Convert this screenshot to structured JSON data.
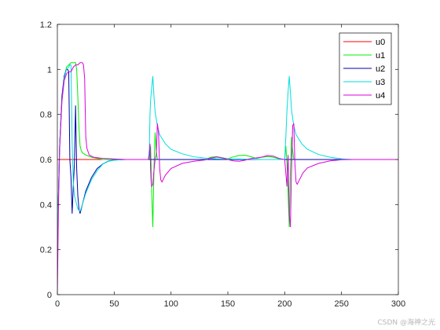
{
  "chart_data": {
    "type": "line",
    "title": "",
    "xlabel": "",
    "ylabel": "",
    "xlim": [
      0,
      300
    ],
    "ylim": [
      0,
      1.2
    ],
    "xticks": [
      0,
      50,
      100,
      150,
      200,
      250,
      300
    ],
    "yticks": [
      0,
      0.2,
      0.4,
      0.6,
      0.8,
      1,
      1.2
    ],
    "xtick_labels": [
      "0",
      "50",
      "100",
      "150",
      "200",
      "250",
      "300"
    ],
    "ytick_labels": [
      "0",
      "0.2",
      "0.4",
      "0.6",
      "0.8",
      "1",
      "1.2"
    ],
    "grid": false,
    "legend_placement": "top-right",
    "series": [
      {
        "name": "u0",
        "color": "#ff0000",
        "points": [
          [
            0,
            0.6
          ],
          [
            300,
            0.6
          ]
        ]
      },
      {
        "name": "u1",
        "color": "#00ee00",
        "points": [
          [
            0,
            0.2
          ],
          [
            1,
            0.45
          ],
          [
            2,
            0.66
          ],
          [
            4,
            0.86
          ],
          [
            6,
            0.96
          ],
          [
            8,
            1.01
          ],
          [
            10,
            1.02
          ],
          [
            12,
            1.03
          ],
          [
            14,
            1.03
          ],
          [
            16,
            1.03
          ],
          [
            17,
            1.0
          ],
          [
            18,
            0.88
          ],
          [
            19,
            0.74
          ],
          [
            20,
            0.66
          ],
          [
            21,
            0.64
          ],
          [
            22,
            0.63
          ],
          [
            25,
            0.62
          ],
          [
            30,
            0.61
          ],
          [
            40,
            0.6
          ],
          [
            50,
            0.6
          ],
          [
            80,
            0.6
          ],
          [
            81,
            0.6
          ],
          [
            82,
            0.66
          ],
          [
            82.5,
            0.58
          ],
          [
            83,
            0.45
          ],
          [
            84,
            0.3
          ],
          [
            85,
            0.56
          ],
          [
            86,
            0.72
          ],
          [
            87,
            0.64
          ],
          [
            88,
            0.6
          ],
          [
            90,
            0.6
          ],
          [
            100,
            0.6
          ],
          [
            120,
            0.6
          ],
          [
            130,
            0.6
          ],
          [
            135,
            0.61
          ],
          [
            140,
            0.613
          ],
          [
            145,
            0.608
          ],
          [
            150,
            0.603
          ],
          [
            155,
            0.612
          ],
          [
            160,
            0.618
          ],
          [
            165,
            0.619
          ],
          [
            170,
            0.613
          ],
          [
            175,
            0.605
          ],
          [
            180,
            0.61
          ],
          [
            185,
            0.613
          ],
          [
            190,
            0.61
          ],
          [
            195,
            0.603
          ],
          [
            198,
            0.6
          ],
          [
            200,
            0.6
          ],
          [
            201,
            0.66
          ],
          [
            202,
            0.58
          ],
          [
            203,
            0.45
          ],
          [
            204,
            0.3
          ],
          [
            205,
            0.55
          ],
          [
            206,
            0.7
          ],
          [
            207,
            0.64
          ],
          [
            208,
            0.6
          ],
          [
            210,
            0.6
          ],
          [
            230,
            0.6
          ],
          [
            300,
            0.6
          ]
        ]
      },
      {
        "name": "u2",
        "color": "#0000aa",
        "points": [
          [
            0,
            0.2
          ],
          [
            1,
            0.45
          ],
          [
            2,
            0.66
          ],
          [
            4,
            0.88
          ],
          [
            6,
            0.97
          ],
          [
            8,
            1.0
          ],
          [
            9,
            1.0
          ],
          [
            10,
            0.99
          ],
          [
            11,
            0.6
          ],
          [
            12,
            0.52
          ],
          [
            13,
            0.36
          ],
          [
            14,
            0.48
          ],
          [
            15,
            0.58
          ],
          [
            16,
            0.84
          ],
          [
            17,
            0.56
          ],
          [
            18,
            0.44
          ],
          [
            19,
            0.38
          ],
          [
            20,
            0.36
          ],
          [
            22,
            0.4
          ],
          [
            25,
            0.46
          ],
          [
            30,
            0.52
          ],
          [
            35,
            0.56
          ],
          [
            40,
            0.58
          ],
          [
            45,
            0.593
          ],
          [
            50,
            0.598
          ],
          [
            60,
            0.6
          ],
          [
            300,
            0.6
          ]
        ]
      },
      {
        "name": "u3",
        "color": "#00dddd",
        "points": [
          [
            0,
            0.2
          ],
          [
            1,
            0.45
          ],
          [
            2,
            0.66
          ],
          [
            4,
            0.86
          ],
          [
            6,
            0.96
          ],
          [
            8,
            1.0
          ],
          [
            10,
            1.01
          ],
          [
            11,
            1.02
          ],
          [
            12,
            1.02
          ],
          [
            13,
            0.68
          ],
          [
            14,
            0.5
          ],
          [
            15,
            0.44
          ],
          [
            16,
            0.42
          ],
          [
            17,
            0.4
          ],
          [
            18,
            0.38
          ],
          [
            20,
            0.37
          ],
          [
            22,
            0.4
          ],
          [
            25,
            0.45
          ],
          [
            30,
            0.51
          ],
          [
            35,
            0.55
          ],
          [
            40,
            0.58
          ],
          [
            45,
            0.592
          ],
          [
            50,
            0.597
          ],
          [
            60,
            0.6
          ],
          [
            80,
            0.6
          ],
          [
            81,
            0.65
          ],
          [
            81.5,
            0.8
          ],
          [
            82,
            0.86
          ],
          [
            83,
            0.92
          ],
          [
            84,
            0.97
          ],
          [
            85,
            0.88
          ],
          [
            86,
            0.81
          ],
          [
            88,
            0.75
          ],
          [
            90,
            0.71
          ],
          [
            95,
            0.67
          ],
          [
            100,
            0.645
          ],
          [
            110,
            0.625
          ],
          [
            120,
            0.612
          ],
          [
            130,
            0.606
          ],
          [
            140,
            0.603
          ],
          [
            150,
            0.602
          ],
          [
            160,
            0.602
          ],
          [
            180,
            0.6
          ],
          [
            200,
            0.6
          ],
          [
            201,
            0.7
          ],
          [
            202,
            0.82
          ],
          [
            203,
            0.9
          ],
          [
            204,
            0.97
          ],
          [
            205,
            0.9
          ],
          [
            206,
            0.82
          ],
          [
            208,
            0.75
          ],
          [
            210,
            0.71
          ],
          [
            215,
            0.67
          ],
          [
            220,
            0.645
          ],
          [
            230,
            0.622
          ],
          [
            240,
            0.61
          ],
          [
            250,
            0.603
          ],
          [
            260,
            0.6
          ],
          [
            300,
            0.6
          ]
        ]
      },
      {
        "name": "u4",
        "color": "#dd00dd",
        "points": [
          [
            0,
            0.0
          ],
          [
            0.5,
            0.2
          ],
          [
            1,
            0.4
          ],
          [
            2,
            0.64
          ],
          [
            4,
            0.86
          ],
          [
            6,
            0.95
          ],
          [
            8,
            0.98
          ],
          [
            10,
            0.99
          ],
          [
            12,
            0.99
          ],
          [
            14,
            1.01
          ],
          [
            16,
            1.02
          ],
          [
            18,
            1.02
          ],
          [
            20,
            1.03
          ],
          [
            22,
            1.03
          ],
          [
            23,
            1.02
          ],
          [
            24,
            0.96
          ],
          [
            25,
            0.7
          ],
          [
            26,
            0.65
          ],
          [
            28,
            0.62
          ],
          [
            32,
            0.61
          ],
          [
            40,
            0.605
          ],
          [
            60,
            0.6
          ],
          [
            80,
            0.6
          ],
          [
            81,
            0.62
          ],
          [
            81.5,
            0.67
          ],
          [
            82,
            0.56
          ],
          [
            82.5,
            0.5
          ],
          [
            83,
            0.48
          ],
          [
            84,
            0.49
          ],
          [
            85,
            0.55
          ],
          [
            86,
            0.6
          ],
          [
            87,
            0.62
          ],
          [
            88,
            0.76
          ],
          [
            89,
            0.72
          ],
          [
            90,
            0.56
          ],
          [
            91,
            0.51
          ],
          [
            92,
            0.5
          ],
          [
            95,
            0.53
          ],
          [
            100,
            0.56
          ],
          [
            110,
            0.583
          ],
          [
            120,
            0.592
          ],
          [
            130,
            0.598
          ],
          [
            135,
            0.606
          ],
          [
            140,
            0.611
          ],
          [
            145,
            0.607
          ],
          [
            150,
            0.6
          ],
          [
            155,
            0.594
          ],
          [
            160,
            0.592
          ],
          [
            165,
            0.597
          ],
          [
            170,
            0.604
          ],
          [
            175,
            0.607
          ],
          [
            180,
            0.611
          ],
          [
            185,
            0.618
          ],
          [
            190,
            0.615
          ],
          [
            195,
            0.605
          ],
          [
            200,
            0.6
          ],
          [
            201,
            0.54
          ],
          [
            202,
            0.48
          ],
          [
            203,
            0.62
          ],
          [
            204,
            0.36
          ],
          [
            205,
            0.3
          ],
          [
            206,
            0.55
          ],
          [
            207,
            0.75
          ],
          [
            208,
            0.76
          ],
          [
            209,
            0.58
          ],
          [
            210,
            0.5
          ],
          [
            211,
            0.49
          ],
          [
            213,
            0.51
          ],
          [
            216,
            0.54
          ],
          [
            220,
            0.563
          ],
          [
            230,
            0.583
          ],
          [
            240,
            0.594
          ],
          [
            250,
            0.599
          ],
          [
            260,
            0.6
          ],
          [
            300,
            0.6
          ]
        ]
      }
    ]
  },
  "footer": {
    "watermark": "CSDN @海神之光"
  }
}
